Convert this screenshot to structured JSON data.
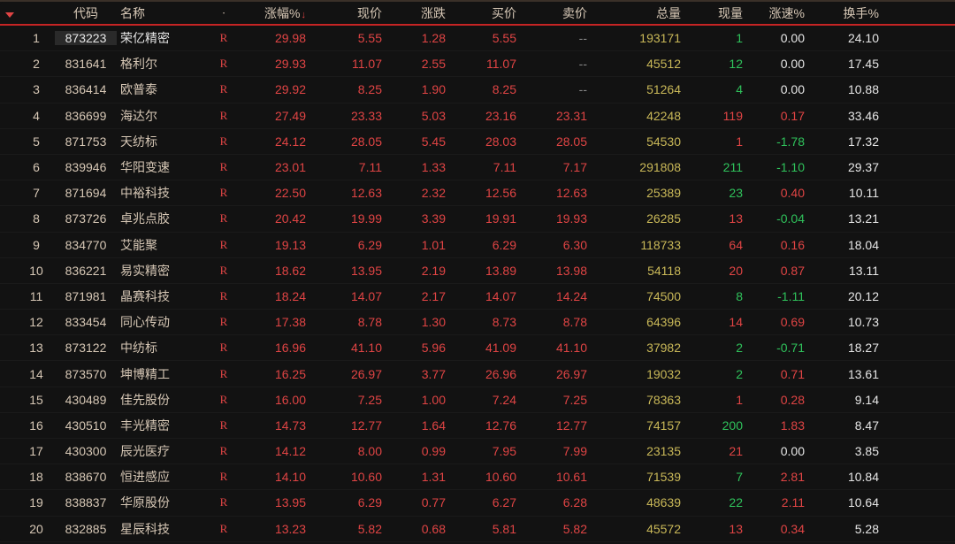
{
  "colors": {
    "bg": "#121212",
    "header_border_top": "#3a3028",
    "header_border_bottom": "#c52424",
    "text_header": "#d6c7b5",
    "red": "#e04444",
    "green": "#2fc25b",
    "yellow": "#c9b858",
    "white": "#e6e6e6",
    "neutral": "#888888"
  },
  "headers": {
    "idx": "",
    "code": "代码",
    "name": "名称",
    "flag": "",
    "chg": "涨幅%",
    "price": "现价",
    "diff": "涨跌",
    "bid": "买价",
    "ask": "卖价",
    "vol": "总量",
    "curv": "现量",
    "spd": "涨速%",
    "turn": "换手%"
  },
  "sort_indicator": "↓",
  "flag_char": "R",
  "placeholder": "--",
  "rows": [
    {
      "idx": "1",
      "code": "873223",
      "name": "荣亿精密",
      "chg": "29.98",
      "price": "5.55",
      "diff": "1.28",
      "bid": "5.55",
      "ask": "--",
      "vol": "193171",
      "curv": "1",
      "spd": "0.00",
      "turn": "24.10",
      "spd_cls": "white",
      "ask_cls": "neutral",
      "sel": true
    },
    {
      "idx": "2",
      "code": "831641",
      "name": "格利尔",
      "chg": "29.93",
      "price": "11.07",
      "diff": "2.55",
      "bid": "11.07",
      "ask": "--",
      "vol": "45512",
      "curv": "12",
      "spd": "0.00",
      "turn": "17.45",
      "spd_cls": "white",
      "ask_cls": "neutral"
    },
    {
      "idx": "3",
      "code": "836414",
      "name": "欧普泰",
      "chg": "29.92",
      "price": "8.25",
      "diff": "1.90",
      "bid": "8.25",
      "ask": "--",
      "vol": "51264",
      "curv": "4",
      "spd": "0.00",
      "turn": "10.88",
      "spd_cls": "white",
      "ask_cls": "neutral"
    },
    {
      "idx": "4",
      "code": "836699",
      "name": "海达尔",
      "chg": "27.49",
      "price": "23.33",
      "diff": "5.03",
      "bid": "23.16",
      "ask": "23.31",
      "vol": "42248",
      "curv": "119",
      "spd": "0.17",
      "turn": "33.46",
      "spd_cls": "red",
      "curv_cls": "red",
      "ask_cls": "red"
    },
    {
      "idx": "5",
      "code": "871753",
      "name": "天纺标",
      "chg": "24.12",
      "price": "28.05",
      "diff": "5.45",
      "bid": "28.03",
      "ask": "28.05",
      "vol": "54530",
      "curv": "1",
      "spd": "-1.78",
      "turn": "17.32",
      "spd_cls": "green",
      "curv_cls": "red",
      "ask_cls": "red"
    },
    {
      "idx": "6",
      "code": "839946",
      "name": "华阳变速",
      "chg": "23.01",
      "price": "7.11",
      "diff": "1.33",
      "bid": "7.11",
      "ask": "7.17",
      "vol": "291808",
      "curv": "211",
      "spd": "-1.10",
      "turn": "29.37",
      "spd_cls": "green",
      "ask_cls": "red"
    },
    {
      "idx": "7",
      "code": "871694",
      "name": "中裕科技",
      "chg": "22.50",
      "price": "12.63",
      "diff": "2.32",
      "bid": "12.56",
      "ask": "12.63",
      "vol": "25389",
      "curv": "23",
      "spd": "0.40",
      "turn": "10.11",
      "spd_cls": "red",
      "ask_cls": "red"
    },
    {
      "idx": "8",
      "code": "873726",
      "name": "卓兆点胶",
      "chg": "20.42",
      "price": "19.99",
      "diff": "3.39",
      "bid": "19.91",
      "ask": "19.93",
      "vol": "26285",
      "curv": "13",
      "spd": "-0.04",
      "turn": "13.21",
      "spd_cls": "green",
      "curv_cls": "red",
      "ask_cls": "red"
    },
    {
      "idx": "9",
      "code": "834770",
      "name": "艾能聚",
      "chg": "19.13",
      "price": "6.29",
      "diff": "1.01",
      "bid": "6.29",
      "ask": "6.30",
      "vol": "118733",
      "curv": "64",
      "spd": "0.16",
      "turn": "18.04",
      "spd_cls": "red",
      "curv_cls": "red",
      "ask_cls": "red"
    },
    {
      "idx": "10",
      "code": "836221",
      "name": "易实精密",
      "chg": "18.62",
      "price": "13.95",
      "diff": "2.19",
      "bid": "13.89",
      "ask": "13.98",
      "vol": "54118",
      "curv": "20",
      "spd": "0.87",
      "turn": "13.11",
      "spd_cls": "red",
      "curv_cls": "red",
      "ask_cls": "red"
    },
    {
      "idx": "11",
      "code": "871981",
      "name": "晶赛科技",
      "chg": "18.24",
      "price": "14.07",
      "diff": "2.17",
      "bid": "14.07",
      "ask": "14.24",
      "vol": "74500",
      "curv": "8",
      "spd": "-1.11",
      "turn": "20.12",
      "spd_cls": "green",
      "ask_cls": "red"
    },
    {
      "idx": "12",
      "code": "833454",
      "name": "同心传动",
      "chg": "17.38",
      "price": "8.78",
      "diff": "1.30",
      "bid": "8.73",
      "ask": "8.78",
      "vol": "64396",
      "curv": "14",
      "spd": "0.69",
      "turn": "10.73",
      "spd_cls": "red",
      "curv_cls": "red",
      "ask_cls": "red"
    },
    {
      "idx": "13",
      "code": "873122",
      "name": "中纺标",
      "chg": "16.96",
      "price": "41.10",
      "diff": "5.96",
      "bid": "41.09",
      "ask": "41.10",
      "vol": "37982",
      "curv": "2",
      "spd": "-0.71",
      "turn": "18.27",
      "spd_cls": "green",
      "ask_cls": "red"
    },
    {
      "idx": "14",
      "code": "873570",
      "name": "坤博精工",
      "chg": "16.25",
      "price": "26.97",
      "diff": "3.77",
      "bid": "26.96",
      "ask": "26.97",
      "vol": "19032",
      "curv": "2",
      "spd": "0.71",
      "turn": "13.61",
      "spd_cls": "red",
      "ask_cls": "red"
    },
    {
      "idx": "15",
      "code": "430489",
      "name": "佳先股份",
      "chg": "16.00",
      "price": "7.25",
      "diff": "1.00",
      "bid": "7.24",
      "ask": "7.25",
      "vol": "78363",
      "curv": "1",
      "spd": "0.28",
      "turn": "9.14",
      "spd_cls": "red",
      "curv_cls": "red",
      "ask_cls": "red"
    },
    {
      "idx": "16",
      "code": "430510",
      "name": "丰光精密",
      "chg": "14.73",
      "price": "12.77",
      "diff": "1.64",
      "bid": "12.76",
      "ask": "12.77",
      "vol": "74157",
      "curv": "200",
      "spd": "1.83",
      "turn": "8.47",
      "spd_cls": "red",
      "ask_cls": "red"
    },
    {
      "idx": "17",
      "code": "430300",
      "name": "辰光医疗",
      "chg": "14.12",
      "price": "8.00",
      "diff": "0.99",
      "bid": "7.95",
      "ask": "7.99",
      "vol": "23135",
      "curv": "21",
      "spd": "0.00",
      "turn": "3.85",
      "spd_cls": "white",
      "curv_cls": "red",
      "ask_cls": "red"
    },
    {
      "idx": "18",
      "code": "838670",
      "name": "恒进感应",
      "chg": "14.10",
      "price": "10.60",
      "diff": "1.31",
      "bid": "10.60",
      "ask": "10.61",
      "vol": "71539",
      "curv": "7",
      "spd": "2.81",
      "turn": "10.84",
      "spd_cls": "red",
      "ask_cls": "red"
    },
    {
      "idx": "19",
      "code": "838837",
      "name": "华原股份",
      "chg": "13.95",
      "price": "6.29",
      "diff": "0.77",
      "bid": "6.27",
      "ask": "6.28",
      "vol": "48639",
      "curv": "22",
      "spd": "2.11",
      "turn": "10.64",
      "spd_cls": "red",
      "ask_cls": "red"
    },
    {
      "idx": "20",
      "code": "832885",
      "name": "星辰科技",
      "chg": "13.23",
      "price": "5.82",
      "diff": "0.68",
      "bid": "5.81",
      "ask": "5.82",
      "vol": "45572",
      "curv": "13",
      "spd": "0.34",
      "turn": "5.28",
      "spd_cls": "red",
      "curv_cls": "red",
      "ask_cls": "red"
    }
  ]
}
